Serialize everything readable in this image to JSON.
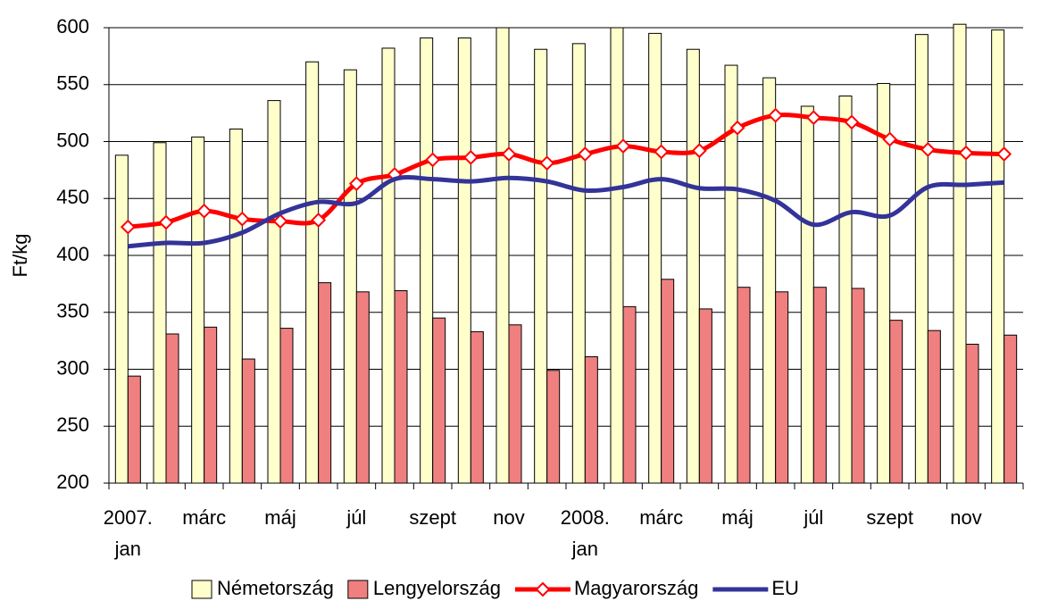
{
  "chart_data": {
    "type": "bar_line",
    "y_label": "Ft/kg",
    "categories": [
      "2007. jan",
      null,
      "márc",
      null,
      "máj",
      null,
      "júl",
      null,
      "szept",
      null,
      "nov",
      null,
      "2008. jan",
      null,
      "márc",
      null,
      "máj",
      null,
      "júl",
      null,
      "szept",
      null,
      "nov",
      null
    ],
    "series": [
      {
        "name": "Németország",
        "kind": "bar",
        "color": "#ffffcc",
        "values": [
          488,
          499,
          504,
          511,
          536,
          570,
          563,
          582,
          591,
          591,
          600,
          581,
          586,
          600,
          595,
          581,
          567,
          556,
          531,
          540,
          551,
          594,
          603,
          598
        ]
      },
      {
        "name": "Lengyelország",
        "kind": "bar",
        "color": "#f08080",
        "values": [
          294,
          331,
          337,
          309,
          336,
          376,
          368,
          369,
          345,
          333,
          339,
          299,
          311,
          355,
          379,
          353,
          372,
          368,
          372,
          371,
          343,
          334,
          322,
          330
        ]
      },
      {
        "name": "Magyarország",
        "kind": "line",
        "marker": "diamond",
        "color": "#ff0000",
        "values": [
          425,
          429,
          439,
          432,
          430,
          431,
          463,
          471,
          484,
          486,
          489,
          481,
          489,
          496,
          491,
          492,
          512,
          523,
          521,
          517,
          502,
          493,
          490,
          489
        ]
      },
      {
        "name": "EU",
        "kind": "line",
        "color": "#333399",
        "values": [
          408,
          411,
          411,
          420,
          437,
          447,
          446,
          467,
          467,
          465,
          468,
          465,
          457,
          460,
          467,
          459,
          458,
          448,
          427,
          438,
          435,
          460,
          462,
          464
        ]
      }
    ],
    "ylim": [
      200,
      600
    ],
    "yticks": [
      200,
      250,
      300,
      350,
      400,
      450,
      500,
      550,
      600
    ],
    "grid": true
  }
}
